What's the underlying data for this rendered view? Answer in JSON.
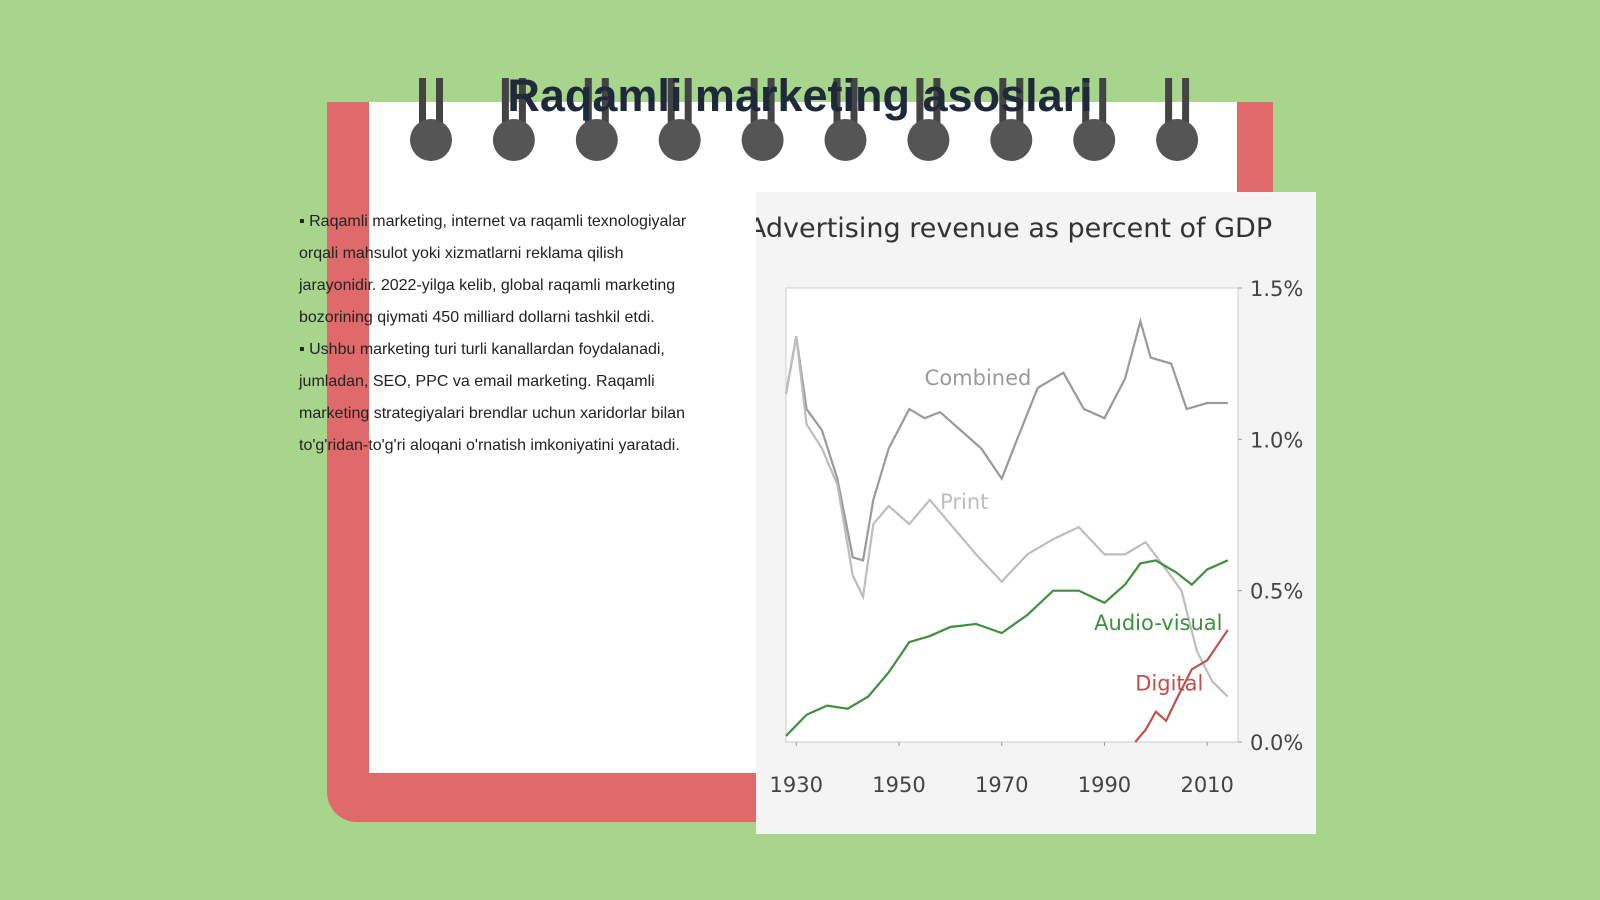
{
  "slide": {
    "title": "Raqamli marketing asoslari",
    "bullets": [
      "▪ Raqamli marketing, internet va raqamli texnologiyalar orqali mahsulot yoki xizmatlarni reklama qilish jarayonidir. 2022-yilga kelib, global raqamli marketing bozorining qiymati 450 milliard dollarni tashkil etdi.",
      "▪ Ushbu marketing turi turli kanallardan foydalanadi, jumladan, SEO, PPC va email marketing. Raqamli marketing strategiyalari brendlar uchun xaridorlar bilan to'g'ridan-to'g'ri aloqani o'rnatish imkoniyatini yaratadi."
    ]
  },
  "chart_data": {
    "type": "line",
    "title": "Advertising revenue as percent of GDP",
    "xlim": [
      1928,
      2016
    ],
    "xticks": [
      1930,
      1950,
      1970,
      1990,
      2010
    ],
    "ylim": [
      0,
      1.5
    ],
    "yticks": [
      {
        "value": 0,
        "label": "0.0%"
      },
      {
        "value": 0.5,
        "label": "0.5%"
      },
      {
        "value": 1.0,
        "label": "1.0%"
      },
      {
        "value": 1.5,
        "label": "1.5%"
      }
    ],
    "y_axis_side": "right",
    "series": [
      {
        "name": "Combined",
        "color": "#9a9a9a",
        "x": [
          1928,
          1930,
          1932,
          1935,
          1938,
          1941,
          1943,
          1945,
          1948,
          1952,
          1955,
          1958,
          1962,
          1966,
          1970,
          1973,
          1977,
          1982,
          1986,
          1990,
          1994,
          1997,
          1999,
          2003,
          2006,
          2010,
          2014
        ],
        "values": [
          1.15,
          1.34,
          1.1,
          1.03,
          0.87,
          0.61,
          0.6,
          0.8,
          0.97,
          1.1,
          1.07,
          1.09,
          1.03,
          0.97,
          0.87,
          1.0,
          1.17,
          1.22,
          1.1,
          1.07,
          1.2,
          1.39,
          1.27,
          1.25,
          1.1,
          1.12,
          1.12
        ]
      },
      {
        "name": "Print",
        "color": "#bdbdbd",
        "x": [
          1928,
          1930,
          1932,
          1935,
          1938,
          1941,
          1943,
          1945,
          1948,
          1952,
          1956,
          1960,
          1965,
          1970,
          1975,
          1980,
          1985,
          1990,
          1994,
          1998,
          2002,
          2005,
          2008,
          2011,
          2014
        ],
        "values": [
          1.15,
          1.34,
          1.05,
          0.97,
          0.85,
          0.55,
          0.48,
          0.72,
          0.78,
          0.72,
          0.8,
          0.72,
          0.62,
          0.53,
          0.62,
          0.67,
          0.71,
          0.62,
          0.62,
          0.66,
          0.57,
          0.5,
          0.3,
          0.2,
          0.15
        ]
      },
      {
        "name": "Audio-visual",
        "color": "#3f8f3f",
        "x": [
          1928,
          1932,
          1936,
          1940,
          1944,
          1948,
          1952,
          1956,
          1960,
          1965,
          1970,
          1975,
          1980,
          1985,
          1990,
          1994,
          1997,
          2000,
          2004,
          2007,
          2010,
          2014
        ],
        "values": [
          0.02,
          0.09,
          0.12,
          0.11,
          0.15,
          0.23,
          0.33,
          0.35,
          0.38,
          0.39,
          0.36,
          0.42,
          0.5,
          0.5,
          0.46,
          0.52,
          0.59,
          0.6,
          0.56,
          0.52,
          0.57,
          0.6
        ]
      },
      {
        "name": "Digital",
        "color": "#c0504d",
        "x": [
          1996,
          1998,
          2000,
          2002,
          2004,
          2007,
          2010,
          2014
        ],
        "values": [
          0.0,
          0.04,
          0.1,
          0.07,
          0.14,
          0.24,
          0.27,
          0.37
        ]
      }
    ]
  }
}
